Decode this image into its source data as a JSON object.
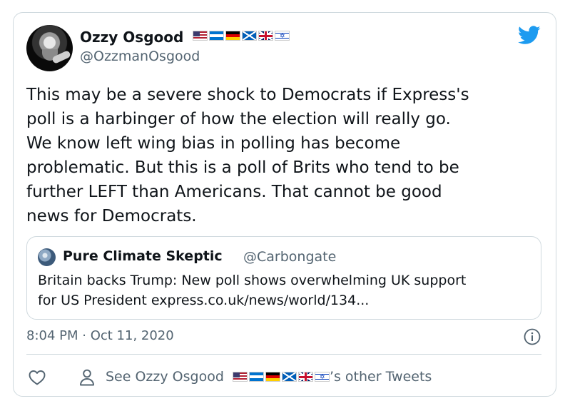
{
  "author": {
    "display_name": "Ozzy Osgood",
    "username": "@OzzmanOsgood",
    "flags": [
      "us-flag",
      "honduras-flag",
      "germany-flag",
      "scotland-flag",
      "uk-flag",
      "israel-flag"
    ]
  },
  "tweet": {
    "text": "This may be a severe shock to Democrats if Express's\npoll is a harbinger of how the election will really go.\nWe know left wing bias in polling has become\nproblematic. But this is a poll of Brits who tend to be\nfurther LEFT than Americans. That cannot be good\nnews for Democrats.",
    "timestamp": "8:04 PM · Oct 11, 2020"
  },
  "quoted_tweet": {
    "display_name": "Pure Climate Skeptic",
    "username": "@Carbongate",
    "text": "Britain backs Trump: New poll shows overwhelming UK support\nfor US President express.co.uk/news/world/134..."
  },
  "footer": {
    "see_prefix": "See Ozzy Osgood",
    "see_suffix": "’s other Tweets"
  },
  "colors": {
    "text": "#0f1419",
    "secondary": "#536471",
    "border": "#cfd9de",
    "twitter_blue": "#1d9bf0"
  },
  "icons": [
    "twitter-bird-icon",
    "info-icon",
    "heart-icon",
    "person-icon"
  ]
}
